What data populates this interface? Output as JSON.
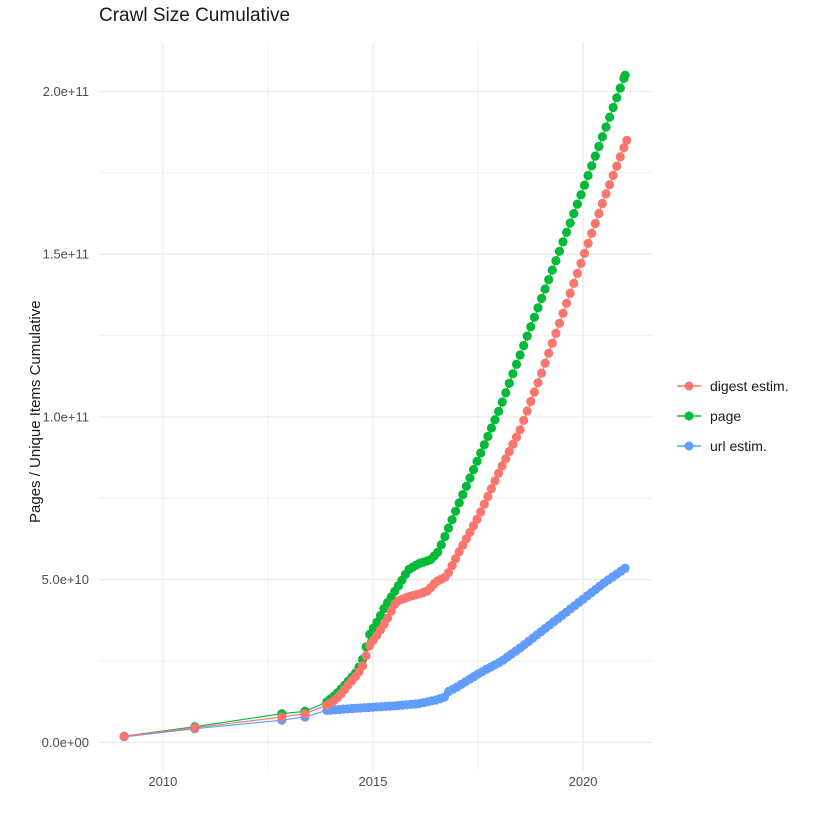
{
  "chart_data": {
    "type": "scatter",
    "title": "Crawl Size Cumulative",
    "xlabel": "",
    "ylabel": "Pages / Unique Items Cumulative",
    "legend_position": "right",
    "grid": true,
    "background_color": "#FFFFFF",
    "grid_color": "#EBEBEB",
    "axis_text_color": "#4D4D4D",
    "title_color": "#1A1A1A",
    "xlim": [
      2008.48,
      2021.64
    ],
    "ylim": [
      -8500000000.0,
      215200000000.0
    ],
    "x_ticks": [
      {
        "value": 2010,
        "label": "2010"
      },
      {
        "value": 2015,
        "label": "2015"
      },
      {
        "value": 2020,
        "label": "2020"
      }
    ],
    "x_minor_ticks": [
      2012.5,
      2017.5
    ],
    "y_ticks": [
      {
        "value": 0,
        "label": "0.0e+00"
      },
      {
        "value": 50000000000.0,
        "label": "5.0e+10"
      },
      {
        "value": 100000000000.0,
        "label": "1.0e+11"
      },
      {
        "value": 150000000000.0,
        "label": "1.5e+11"
      },
      {
        "value": 200000000000.0,
        "label": "2.0e+11"
      }
    ],
    "y_minor_ticks": [
      25000000000.0,
      75000000000.0,
      125000000000.0,
      175000000000.0
    ],
    "point_radius": 4.6,
    "draw_order": [
      1,
      2,
      0
    ],
    "series": [
      {
        "name": "digest estim.",
        "key": "digest-estim",
        "color": "#F8766D",
        "render_from": 2013.9,
        "render_step": 0.0852,
        "points": [
          [
            2009.08,
            1850000000.0
          ],
          [
            2010.76,
            4500000000.0
          ],
          [
            2012.83,
            7800000000.0
          ],
          [
            2013.38,
            8800000000.0
          ],
          [
            2013.9,
            11400000000.0
          ],
          [
            2014.1,
            13000000000.0
          ],
          [
            2014.25,
            15000000000.0
          ],
          [
            2014.4,
            17500000000.0
          ],
          [
            2014.57,
            20000000000.0
          ],
          [
            2014.73,
            22700000000.0
          ],
          [
            2014.93,
            30000000000.0
          ],
          [
            2015.1,
            33000000000.0
          ],
          [
            2015.3,
            37000000000.0
          ],
          [
            2015.55,
            43200000000.0
          ],
          [
            2015.84,
            44700000000.0
          ],
          [
            2016.12,
            45700000000.0
          ],
          [
            2016.3,
            46500000000.0
          ],
          [
            2016.5,
            49300000000.0
          ],
          [
            2016.75,
            51000000000.0
          ],
          [
            2017.07,
            59000000000.0
          ],
          [
            2017.5,
            69000000000.0
          ],
          [
            2018.0,
            83000000000.0
          ],
          [
            2018.5,
            96000000000.0
          ],
          [
            2019.0,
            113000000000.0
          ],
          [
            2019.5,
            131000000000.0
          ],
          [
            2020.0,
            149000000000.0
          ],
          [
            2020.5,
            167000000000.0
          ],
          [
            2021.04,
            185000000000.0
          ]
        ]
      },
      {
        "name": "page",
        "key": "page",
        "color": "#00BA38",
        "render_from": 2013.9,
        "render_step": 0.0852,
        "points": [
          [
            2009.08,
            1900000000.0
          ],
          [
            2010.76,
            4800000000.0
          ],
          [
            2012.83,
            8800000000.0
          ],
          [
            2013.38,
            9500000000.0
          ],
          [
            2013.9,
            12400000000.0
          ],
          [
            2014.1,
            14500000000.0
          ],
          [
            2014.25,
            16500000000.0
          ],
          [
            2014.4,
            18600000000.0
          ],
          [
            2014.57,
            21000000000.0
          ],
          [
            2014.73,
            24500000000.0
          ],
          [
            2014.93,
            33500000000.0
          ],
          [
            2015.1,
            37000000000.0
          ],
          [
            2015.3,
            42000000000.0
          ],
          [
            2015.5,
            46000000000.0
          ],
          [
            2015.65,
            49000000000.0
          ],
          [
            2015.84,
            53000000000.0
          ],
          [
            2016.1,
            55000000000.0
          ],
          [
            2016.36,
            56000000000.0
          ],
          [
            2016.55,
            58500000000.0
          ],
          [
            2016.67,
            62000000000.0
          ],
          [
            2017.0,
            72000000000.0
          ],
          [
            2017.5,
            87000000000.0
          ],
          [
            2018.0,
            102000000000.0
          ],
          [
            2018.5,
            119000000000.0
          ],
          [
            2019.0,
            136000000000.0
          ],
          [
            2019.5,
            153000000000.0
          ],
          [
            2020.0,
            170000000000.0
          ],
          [
            2020.5,
            187500000000.0
          ],
          [
            2021.0,
            205000000000.0
          ]
        ]
      },
      {
        "name": "url estim.",
        "key": "url-estim",
        "color": "#619CFF",
        "render_from": 2013.9,
        "render_step": 0.1,
        "points": [
          [
            2009.08,
            1700000000.0
          ],
          [
            2010.76,
            4200000000.0
          ],
          [
            2012.83,
            6800000000.0
          ],
          [
            2013.38,
            7800000000.0
          ],
          [
            2013.9,
            9800000000.0
          ],
          [
            2014.1,
            10000000000.0
          ],
          [
            2014.5,
            10400000000.0
          ],
          [
            2015.0,
            10800000000.0
          ],
          [
            2015.5,
            11200000000.0
          ],
          [
            2016.1,
            11900000000.0
          ],
          [
            2016.5,
            13000000000.0
          ],
          [
            2016.7,
            13900000000.0
          ],
          [
            2016.78,
            15500000000.0
          ],
          [
            2017.0,
            17000000000.0
          ],
          [
            2017.5,
            21000000000.0
          ],
          [
            2018.07,
            25000000000.0
          ],
          [
            2018.5,
            29000000000.0
          ],
          [
            2019.0,
            34000000000.0
          ],
          [
            2019.5,
            39000000000.0
          ],
          [
            2020.0,
            44000000000.0
          ],
          [
            2020.5,
            49000000000.0
          ],
          [
            2021.0,
            53500000000.0
          ]
        ]
      }
    ]
  }
}
